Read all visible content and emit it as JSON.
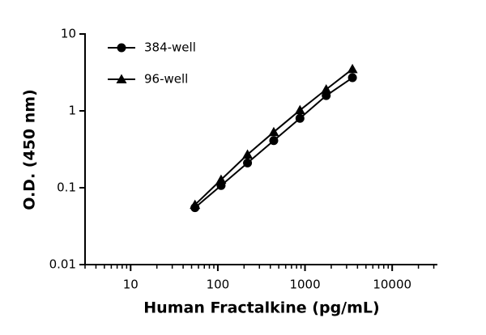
{
  "chart_data": {
    "type": "line",
    "log_x": true,
    "log_y": true,
    "x_minor_ticks": true,
    "xlabel": "Human Fractalkine (pg/mL)",
    "ylabel": "O.D. (450 nm)",
    "x": [
      54.7,
      109,
      219,
      438,
      875,
      1750,
      3500
    ],
    "series": [
      {
        "name": "384-well",
        "color": "#000000",
        "marker": "circle",
        "values": [
          0.055,
          0.107,
          0.21,
          0.41,
          0.8,
          1.58,
          2.7
        ]
      },
      {
        "name": "96-well",
        "color": "#000000",
        "marker": "triangle",
        "values": [
          0.06,
          0.127,
          0.27,
          0.53,
          1.02,
          1.9,
          3.5
        ]
      }
    ],
    "xlim": [
      3,
      33000
    ],
    "xticks": [
      10,
      100,
      1000,
      10000
    ],
    "ylim": [
      0.01,
      10
    ],
    "yticks": [
      10,
      1,
      0.1,
      0.01
    ],
    "legend": "top-left"
  }
}
